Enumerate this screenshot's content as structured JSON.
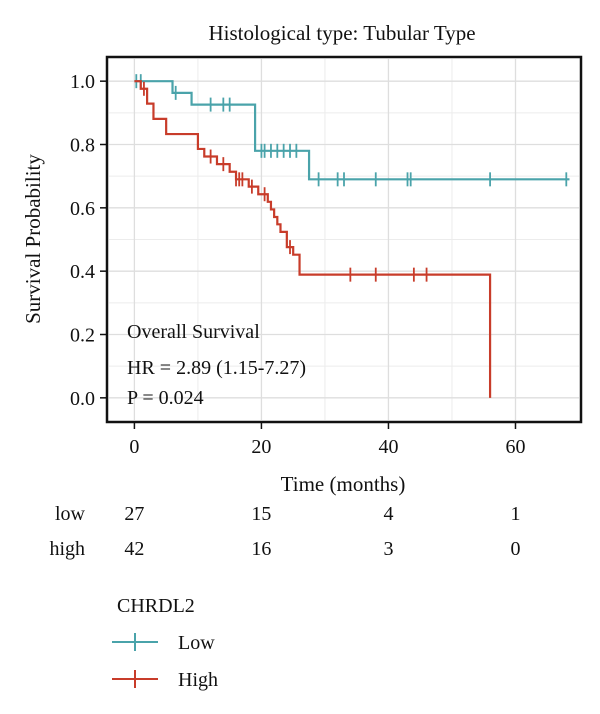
{
  "chart_data": {
    "type": "line",
    "title": "Histological type: Tubular Type",
    "xlabel": "Time (months)",
    "ylabel": "Survival Probability",
    "xlim": [
      -4,
      70
    ],
    "ylim": [
      -0.07,
      1.07
    ],
    "x_ticks": [
      0,
      20,
      40,
      60
    ],
    "y_ticks": [
      0.0,
      0.2,
      0.4,
      0.6,
      0.8,
      1.0
    ],
    "x_tick_labels": [
      "0",
      "20",
      "40",
      "60"
    ],
    "y_tick_labels": [
      "0.0",
      "0.2",
      "0.4",
      "0.6",
      "0.8",
      "1.0"
    ],
    "grid": true,
    "annotation": {
      "line1": "Overall Survival",
      "line2": "HR = 2.89 (1.15-7.27)",
      "line3": "P = 0.024"
    },
    "series": [
      {
        "name": "Low",
        "color": "#4aa3aa",
        "steps": [
          [
            0,
            1.0
          ],
          [
            6,
            0.963
          ],
          [
            9,
            0.926
          ],
          [
            19,
            0.78
          ],
          [
            27.5,
            0.69
          ],
          [
            68.5,
            0.69
          ]
        ],
        "censor": [
          0.3,
          1,
          6.5,
          12,
          14,
          15,
          20,
          20.5,
          21.5,
          22.5,
          23.5,
          24.5,
          25.5,
          29,
          32,
          33,
          38,
          43,
          43.5,
          56,
          68
        ]
      },
      {
        "name": "High",
        "color": "#c83c2a",
        "steps": [
          [
            0,
            1.0
          ],
          [
            1,
            0.976
          ],
          [
            2,
            0.929
          ],
          [
            3,
            0.881
          ],
          [
            5,
            0.833
          ],
          [
            10,
            0.786
          ],
          [
            11,
            0.762
          ],
          [
            13,
            0.738
          ],
          [
            15,
            0.714
          ],
          [
            16,
            0.69
          ],
          [
            18,
            0.667
          ],
          [
            19.5,
            0.643
          ],
          [
            21,
            0.619
          ],
          [
            21.5,
            0.595
          ],
          [
            22,
            0.571
          ],
          [
            22.5,
            0.548
          ],
          [
            23,
            0.524
          ],
          [
            24,
            0.476
          ],
          [
            25,
            0.452
          ],
          [
            26,
            0.389
          ],
          [
            56,
            0.0
          ]
        ],
        "censor": [
          1.5,
          12,
          14,
          16,
          16.5,
          17,
          18.5,
          20.5,
          24.5,
          34,
          38,
          44,
          46
        ]
      }
    ],
    "risk_table": {
      "rows": [
        {
          "label": "low",
          "counts": [
            "27",
            "15",
            "4",
            "1"
          ]
        },
        {
          "label": "high",
          "counts": [
            "42",
            "16",
            "3",
            "0"
          ]
        }
      ],
      "times": [
        0,
        20,
        40,
        60
      ]
    },
    "legend": {
      "title": "CHRDL2",
      "position": "bottom-left",
      "items": [
        {
          "label": "Low",
          "color": "#4aa3aa"
        },
        {
          "label": "High",
          "color": "#c83c2a"
        }
      ]
    }
  }
}
